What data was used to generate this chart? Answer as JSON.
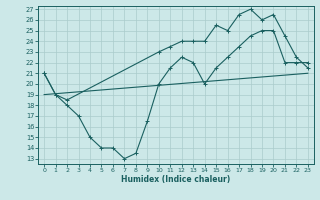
{
  "xlabel": "Humidex (Indice chaleur)",
  "bg_color": "#cce8e8",
  "grid_color": "#aacccc",
  "line_color": "#1a6060",
  "xlim": [
    -0.5,
    23.5
  ],
  "ylim": [
    12.5,
    27.3
  ],
  "yticks": [
    13,
    14,
    15,
    16,
    17,
    18,
    19,
    20,
    21,
    22,
    23,
    24,
    25,
    26,
    27
  ],
  "xticks": [
    0,
    1,
    2,
    3,
    4,
    5,
    6,
    7,
    8,
    9,
    10,
    11,
    12,
    13,
    14,
    15,
    16,
    17,
    18,
    19,
    20,
    21,
    22,
    23
  ],
  "line1_x": [
    0,
    1,
    2,
    3,
    4,
    5,
    6,
    7,
    8,
    9,
    10,
    11,
    12,
    13,
    14,
    15,
    16,
    17,
    18,
    19,
    20,
    21,
    22,
    23
  ],
  "line1_y": [
    21,
    19,
    18,
    17,
    15,
    14,
    14,
    13,
    13.5,
    16.5,
    20,
    21.5,
    22.5,
    22,
    20,
    21.5,
    22.5,
    23.5,
    24.5,
    25,
    25,
    22,
    22,
    22
  ],
  "line2_x": [
    0,
    23
  ],
  "line2_y": [
    19,
    21
  ],
  "line3_x": [
    0,
    1,
    2,
    10,
    11,
    12,
    13,
    14,
    15,
    16,
    17,
    18,
    19,
    20,
    21,
    22,
    23
  ],
  "line3_y": [
    21,
    19,
    18.5,
    23,
    23.5,
    24,
    24,
    24,
    25.5,
    25,
    26.5,
    27,
    26,
    26.5,
    24.5,
    22.5,
    21.5
  ]
}
